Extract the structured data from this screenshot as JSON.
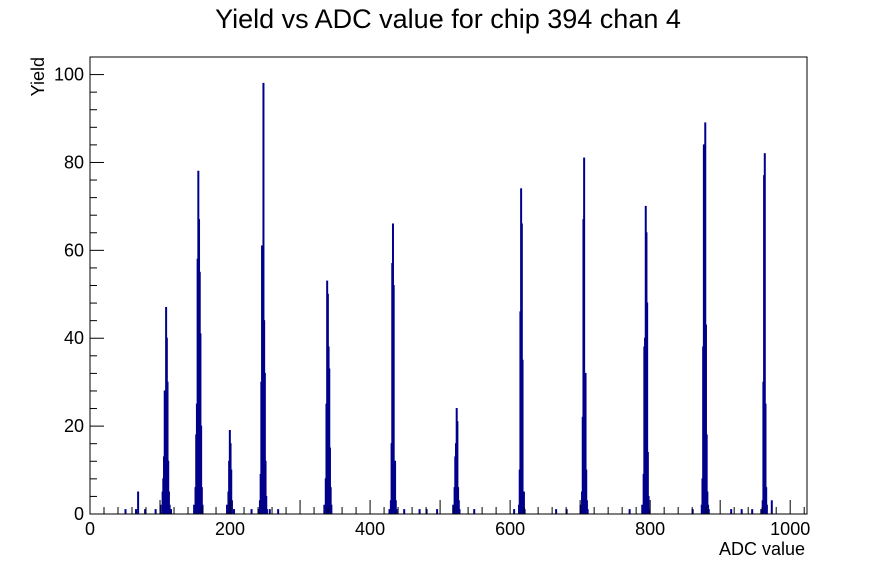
{
  "chart_data": {
    "type": "bar",
    "title": "Yield vs ADC value for chip 394 chan 4",
    "xlabel": "ADC value",
    "ylabel": "Yield",
    "xlim": [
      0,
      1024
    ],
    "ylim": [
      0,
      104
    ],
    "x_ticks": [
      0,
      200,
      400,
      600,
      800,
      1000
    ],
    "y_ticks": [
      0,
      20,
      40,
      60,
      80,
      100
    ],
    "grid": false,
    "legend": "none",
    "color": "#00008b",
    "bins": [
      {
        "x": 50,
        "y": 1
      },
      {
        "x": 65,
        "y": 1
      },
      {
        "x": 68,
        "y": 5
      },
      {
        "x": 78,
        "y": 1
      },
      {
        "x": 93,
        "y": 1
      },
      {
        "x": 100,
        "y": 2
      },
      {
        "x": 103,
        "y": 5
      },
      {
        "x": 104,
        "y": 8
      },
      {
        "x": 105,
        "y": 13
      },
      {
        "x": 106,
        "y": 28
      },
      {
        "x": 107,
        "y": 18
      },
      {
        "x": 108,
        "y": 47
      },
      {
        "x": 109,
        "y": 40
      },
      {
        "x": 110,
        "y": 30
      },
      {
        "x": 111,
        "y": 12
      },
      {
        "x": 112,
        "y": 5
      },
      {
        "x": 113,
        "y": 2
      },
      {
        "x": 115,
        "y": 1
      },
      {
        "x": 148,
        "y": 2
      },
      {
        "x": 150,
        "y": 6
      },
      {
        "x": 151,
        "y": 18
      },
      {
        "x": 152,
        "y": 25
      },
      {
        "x": 153,
        "y": 58
      },
      {
        "x": 154,
        "y": 78
      },
      {
        "x": 155,
        "y": 67
      },
      {
        "x": 156,
        "y": 55
      },
      {
        "x": 157,
        "y": 41
      },
      {
        "x": 158,
        "y": 20
      },
      {
        "x": 159,
        "y": 6
      },
      {
        "x": 160,
        "y": 2
      },
      {
        "x": 195,
        "y": 2
      },
      {
        "x": 197,
        "y": 5
      },
      {
        "x": 198,
        "y": 12
      },
      {
        "x": 199,
        "y": 19
      },
      {
        "x": 200,
        "y": 16
      },
      {
        "x": 201,
        "y": 10
      },
      {
        "x": 202,
        "y": 3
      },
      {
        "x": 205,
        "y": 1
      },
      {
        "x": 230,
        "y": 1
      },
      {
        "x": 240,
        "y": 1
      },
      {
        "x": 242,
        "y": 3
      },
      {
        "x": 243,
        "y": 9
      },
      {
        "x": 244,
        "y": 30
      },
      {
        "x": 245,
        "y": 61
      },
      {
        "x": 246,
        "y": 48
      },
      {
        "x": 247,
        "y": 98
      },
      {
        "x": 248,
        "y": 44
      },
      {
        "x": 249,
        "y": 32
      },
      {
        "x": 250,
        "y": 12
      },
      {
        "x": 251,
        "y": 4
      },
      {
        "x": 252,
        "y": 1
      },
      {
        "x": 256,
        "y": 1
      },
      {
        "x": 268,
        "y": 1
      },
      {
        "x": 334,
        "y": 2
      },
      {
        "x": 336,
        "y": 8
      },
      {
        "x": 337,
        "y": 25
      },
      {
        "x": 338,
        "y": 53
      },
      {
        "x": 339,
        "y": 50
      },
      {
        "x": 340,
        "y": 38
      },
      {
        "x": 341,
        "y": 33
      },
      {
        "x": 342,
        "y": 15
      },
      {
        "x": 343,
        "y": 6
      },
      {
        "x": 344,
        "y": 2
      },
      {
        "x": 427,
        "y": 1
      },
      {
        "x": 429,
        "y": 3
      },
      {
        "x": 430,
        "y": 16
      },
      {
        "x": 431,
        "y": 57
      },
      {
        "x": 432,
        "y": 66
      },
      {
        "x": 433,
        "y": 52
      },
      {
        "x": 434,
        "y": 11
      },
      {
        "x": 435,
        "y": 12
      },
      {
        "x": 436,
        "y": 3
      },
      {
        "x": 437,
        "y": 1
      },
      {
        "x": 448,
        "y": 1
      },
      {
        "x": 470,
        "y": 1
      },
      {
        "x": 480,
        "y": 1
      },
      {
        "x": 495,
        "y": 1
      },
      {
        "x": 518,
        "y": 2
      },
      {
        "x": 520,
        "y": 6
      },
      {
        "x": 521,
        "y": 13
      },
      {
        "x": 522,
        "y": 16
      },
      {
        "x": 523,
        "y": 24
      },
      {
        "x": 524,
        "y": 21
      },
      {
        "x": 525,
        "y": 6
      },
      {
        "x": 526,
        "y": 3
      },
      {
        "x": 527,
        "y": 1
      },
      {
        "x": 548,
        "y": 1
      },
      {
        "x": 605,
        "y": 1
      },
      {
        "x": 612,
        "y": 2
      },
      {
        "x": 613,
        "y": 10
      },
      {
        "x": 614,
        "y": 46
      },
      {
        "x": 615,
        "y": 74
      },
      {
        "x": 616,
        "y": 66
      },
      {
        "x": 617,
        "y": 35
      },
      {
        "x": 618,
        "y": 3
      },
      {
        "x": 619,
        "y": 5
      },
      {
        "x": 620,
        "y": 1
      },
      {
        "x": 665,
        "y": 1
      },
      {
        "x": 680,
        "y": 1
      },
      {
        "x": 700,
        "y": 2
      },
      {
        "x": 702,
        "y": 5
      },
      {
        "x": 703,
        "y": 22
      },
      {
        "x": 704,
        "y": 67
      },
      {
        "x": 705,
        "y": 81
      },
      {
        "x": 706,
        "y": 25
      },
      {
        "x": 707,
        "y": 32
      },
      {
        "x": 708,
        "y": 10
      },
      {
        "x": 709,
        "y": 3
      },
      {
        "x": 710,
        "y": 1
      },
      {
        "x": 770,
        "y": 1
      },
      {
        "x": 788,
        "y": 2
      },
      {
        "x": 790,
        "y": 9
      },
      {
        "x": 791,
        "y": 38
      },
      {
        "x": 792,
        "y": 40
      },
      {
        "x": 793,
        "y": 70
      },
      {
        "x": 794,
        "y": 64
      },
      {
        "x": 795,
        "y": 48
      },
      {
        "x": 796,
        "y": 14
      },
      {
        "x": 797,
        "y": 4
      },
      {
        "x": 798,
        "y": 1
      },
      {
        "x": 860,
        "y": 1
      },
      {
        "x": 873,
        "y": 2
      },
      {
        "x": 874,
        "y": 8
      },
      {
        "x": 875,
        "y": 38
      },
      {
        "x": 876,
        "y": 84
      },
      {
        "x": 877,
        "y": 38
      },
      {
        "x": 878,
        "y": 89
      },
      {
        "x": 879,
        "y": 43
      },
      {
        "x": 880,
        "y": 18
      },
      {
        "x": 881,
        "y": 5
      },
      {
        "x": 882,
        "y": 2
      },
      {
        "x": 883,
        "y": 1
      },
      {
        "x": 915,
        "y": 1
      },
      {
        "x": 930,
        "y": 1
      },
      {
        "x": 945,
        "y": 1
      },
      {
        "x": 958,
        "y": 1
      },
      {
        "x": 960,
        "y": 3
      },
      {
        "x": 961,
        "y": 30
      },
      {
        "x": 962,
        "y": 77
      },
      {
        "x": 963,
        "y": 82
      },
      {
        "x": 964,
        "y": 25
      },
      {
        "x": 965,
        "y": 6
      },
      {
        "x": 966,
        "y": 2
      },
      {
        "x": 973,
        "y": 3
      }
    ]
  }
}
